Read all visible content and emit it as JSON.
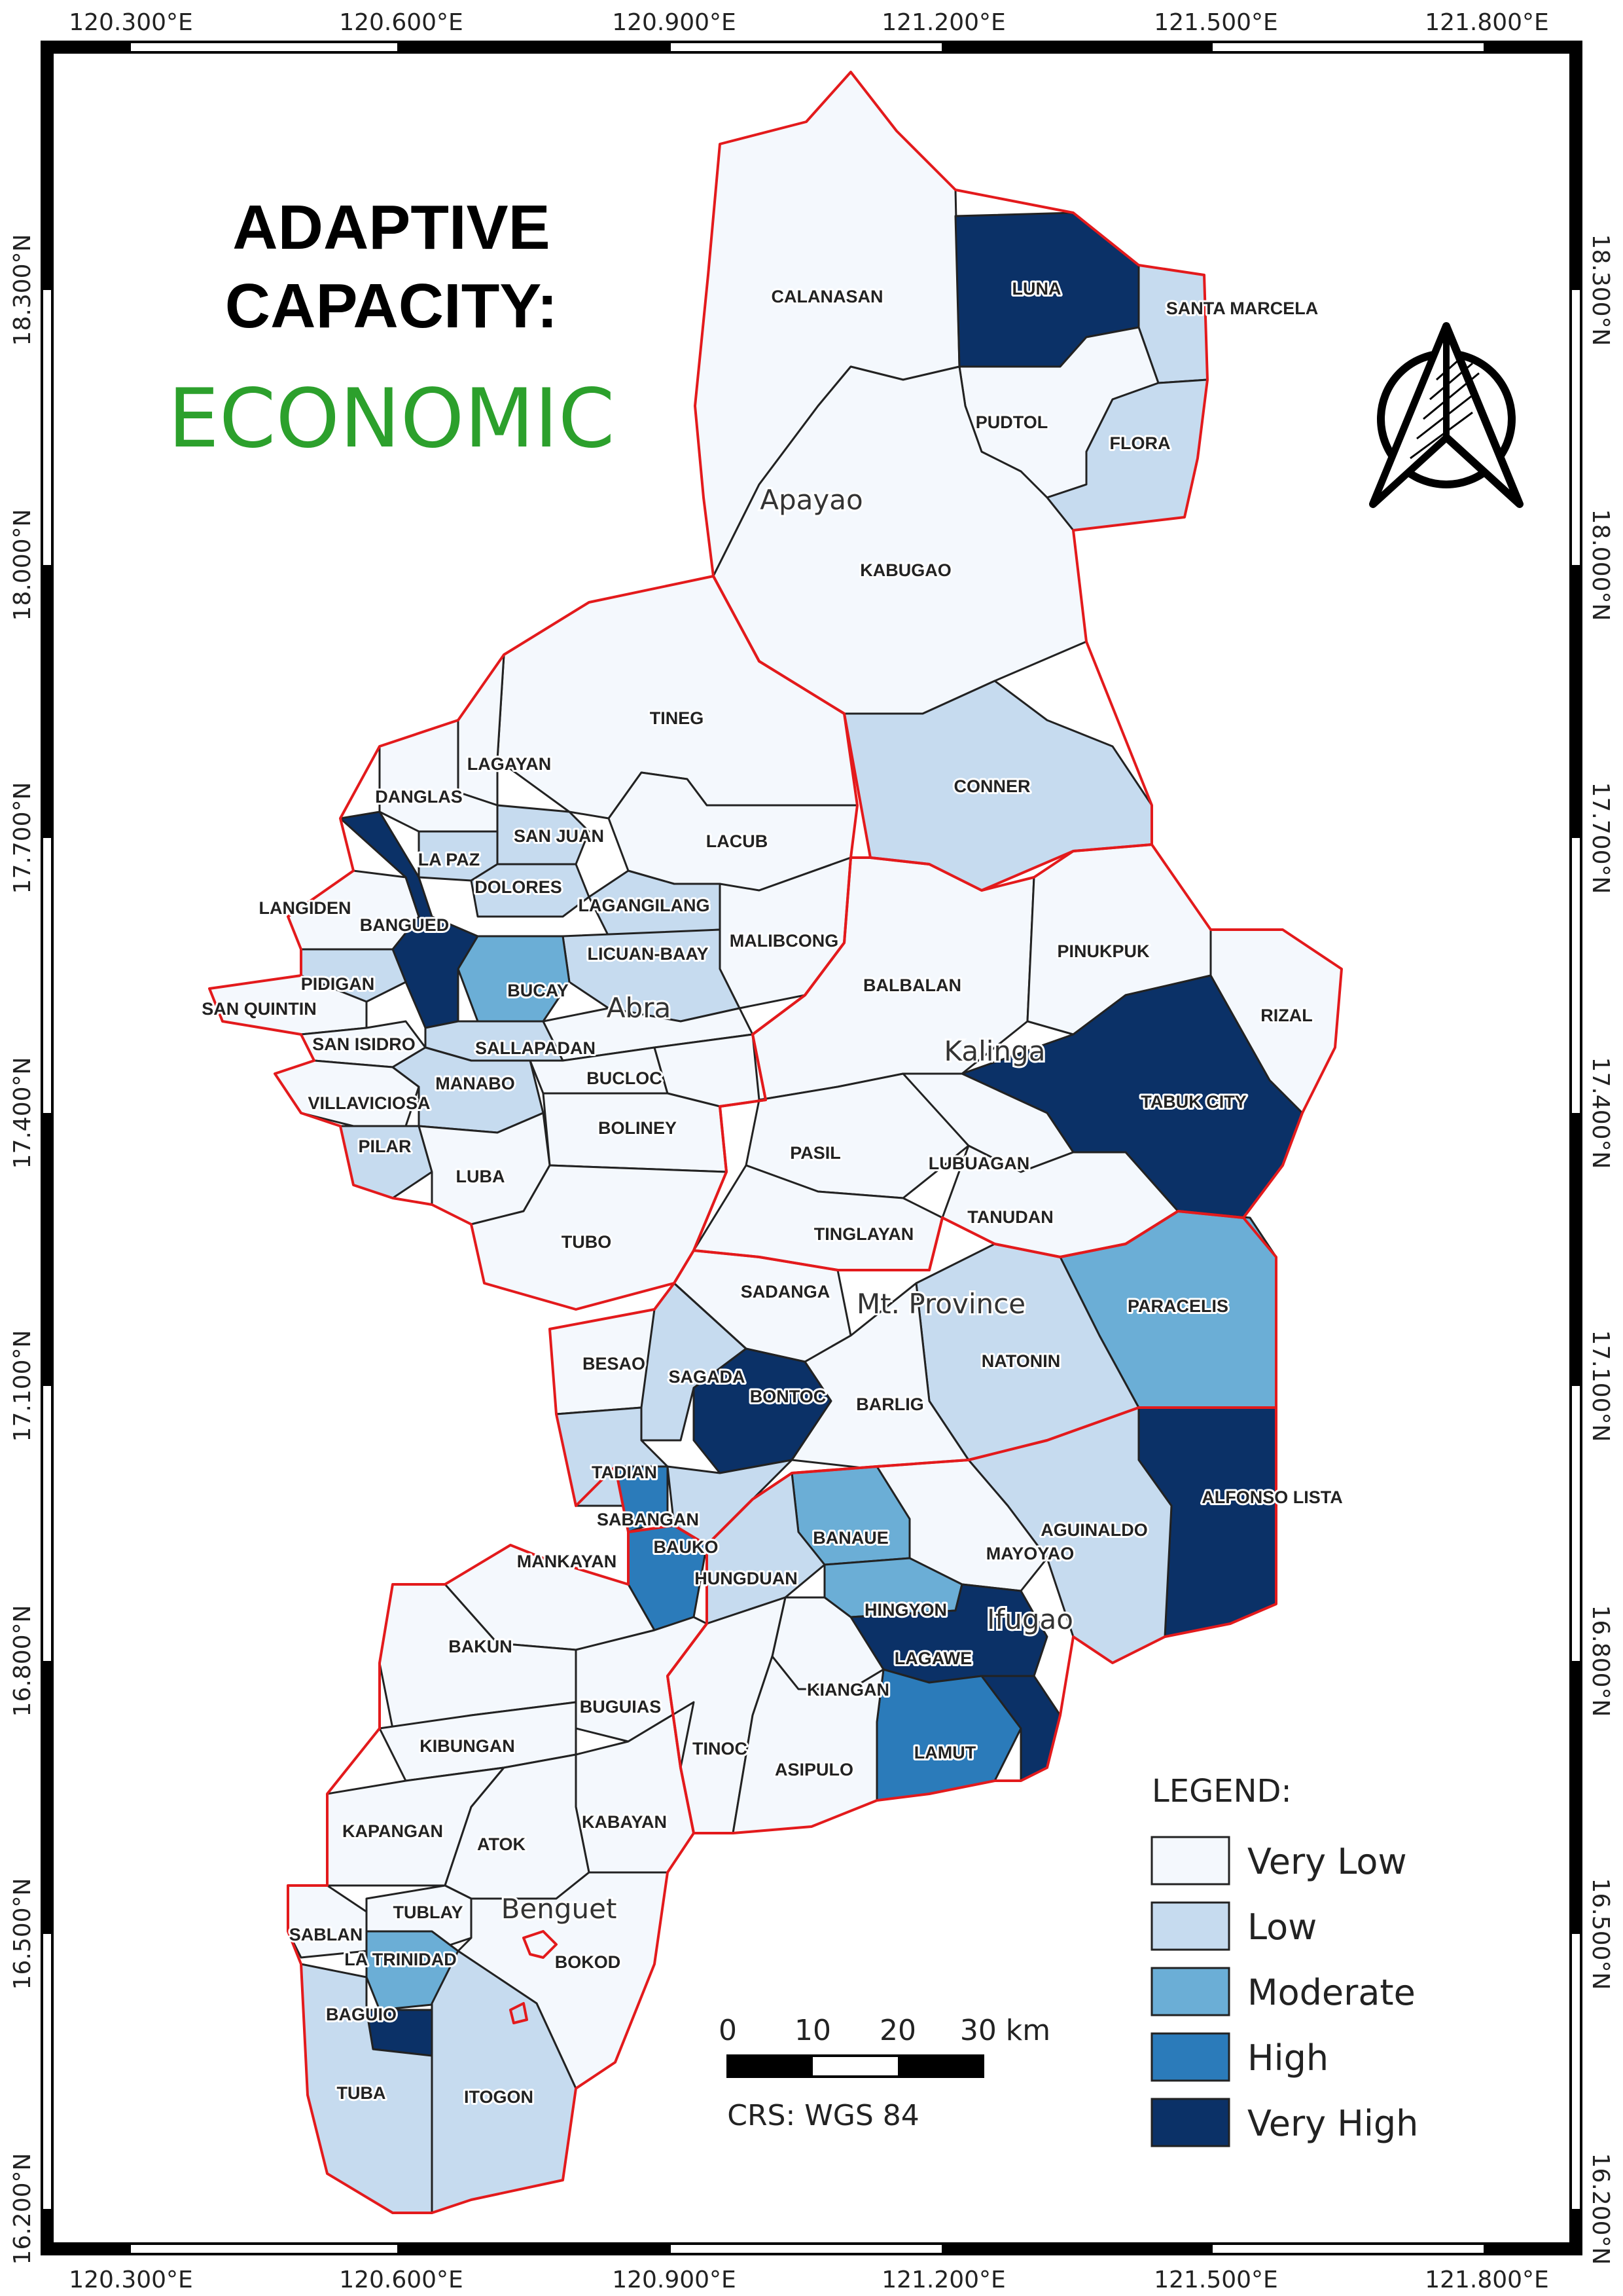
{
  "title": {
    "line1": "ADAPTIVE",
    "line2": "CAPACITY:",
    "line3": "ECONOMIC"
  },
  "colors": {
    "very_low": "#f4f8fd",
    "low": "#c6dbef",
    "moderate": "#6baed6",
    "high": "#2b7bba",
    "very_high": "#0b3167",
    "province_border": "#e31a1c",
    "municipal_border": "#222222"
  },
  "graticule": {
    "top": [
      "120.300°E",
      "120.600°E",
      "120.900°E",
      "121.200°E",
      "121.500°E",
      "121.800°E"
    ],
    "bottom": [
      "120.300°E",
      "120.600°E",
      "120.900°E",
      "121.200°E",
      "121.500°E",
      "121.800°E"
    ],
    "left": [
      "18.300°N",
      "18.000°N",
      "17.700°N",
      "17.400°N",
      "17.100°N",
      "16.800°N",
      "16.500°N",
      "16.200°N"
    ],
    "right": [
      "18.300°N",
      "18.000°N",
      "17.700°N",
      "17.400°N",
      "17.100°N",
      "16.800°N",
      "16.500°N",
      "16.200°N"
    ]
  },
  "provinces": [
    "Apayao",
    "Abra",
    "Kalinga",
    "Mt. Province",
    "Ifugao",
    "Benguet"
  ],
  "municipalities": {
    "calanasan": "CALANASAN",
    "luna": "LUNA",
    "santa_marcela": "SANTA MARCELA",
    "pudtol": "PUDTOL",
    "flora": "FLORA",
    "kabugao": "KABUGAO",
    "tineg": "TINEG",
    "lagayan": "LAGAYAN",
    "danglas": "DANGLAS",
    "san_juan": "SAN JUAN",
    "la_paz": "LA PAZ",
    "lacub": "LACUB",
    "dolores": "DOLORES",
    "langiden": "LANGIDEN",
    "lagangilang": "LAGANGILANG",
    "bangued": "BANGUED",
    "malibcong": "MALIBCONG",
    "licuan_baay": "LICUAN-BAAY",
    "pidigan": "PIDIGAN",
    "bucay": "BUCAY",
    "san_quintin": "SAN QUINTIN",
    "san_isidro": "SAN ISIDRO",
    "sallapadan": "SALLAPADAN",
    "villaviciosa": "VILLAVICIOSA",
    "manabo": "MANABO",
    "bucloc": "BUCLOC",
    "boliney": "BOLINEY",
    "pilar": "PILAR",
    "luba": "LUBA",
    "tubo": "TUBO",
    "conner": "CONNER",
    "pinukpuk": "PINUKPUK",
    "balbalan": "BALBALAN",
    "rizal": "RIZAL",
    "tabuk_city": "TABUK CITY",
    "pasil": "PASIL",
    "lubuagan": "LUBUAGAN",
    "tanudan": "TANUDAN",
    "tinglayan": "TINGLAYAN",
    "sadanga": "SADANGA",
    "paracelis": "PARACELIS",
    "natonin": "NATONIN",
    "besao": "BESAO",
    "sagada": "SAGADA",
    "bontoc": "BONTOC",
    "barlig": "BARLIG",
    "tadian": "TADIAN",
    "sabangan": "SABANGAN",
    "bauko": "BAUKO",
    "banaue": "BANAUE",
    "alfonso_lista": "ALFONSO LISTA",
    "aguinaldo": "AGUINALDO",
    "mayoyao": "MAYOYAO",
    "hungduan": "HUNGDUAN",
    "hingyon": "HINGYON",
    "mankayan": "MANKAYAN",
    "lagawe": "LAGAWE",
    "bakun": "BAKUN",
    "kiangan": "KIANGAN",
    "buguias": "BUGUIAS",
    "tinoc": "TINOC",
    "lamut": "LAMUT",
    "asipulo": "ASIPULO",
    "kibungan": "KIBUNGAN",
    "kabayan": "KABAYAN",
    "kapangan": "KAPANGAN",
    "atok": "ATOK",
    "tublay": "TUBLAY",
    "sablan": "SABLAN",
    "la_trinidad": "LA TRINIDAD",
    "bokod": "BOKOD",
    "baguio": "BAGUIO",
    "tuba": "TUBA",
    "itogon": "ITOGON"
  },
  "legend": {
    "title": "LEGEND:",
    "items": [
      {
        "label": "Very Low",
        "color": "#f4f8fd"
      },
      {
        "label": "Low",
        "color": "#c6dbef"
      },
      {
        "label": "Moderate",
        "color": "#6baed6"
      },
      {
        "label": "High",
        "color": "#2b7bba"
      },
      {
        "label": "Very High",
        "color": "#0b3167"
      }
    ]
  },
  "scale_bar": {
    "ticks": [
      "0",
      "10",
      "20",
      "30 km"
    ]
  },
  "crs": "CRS: WGS 84",
  "north_arrow": "north-arrow-icon"
}
